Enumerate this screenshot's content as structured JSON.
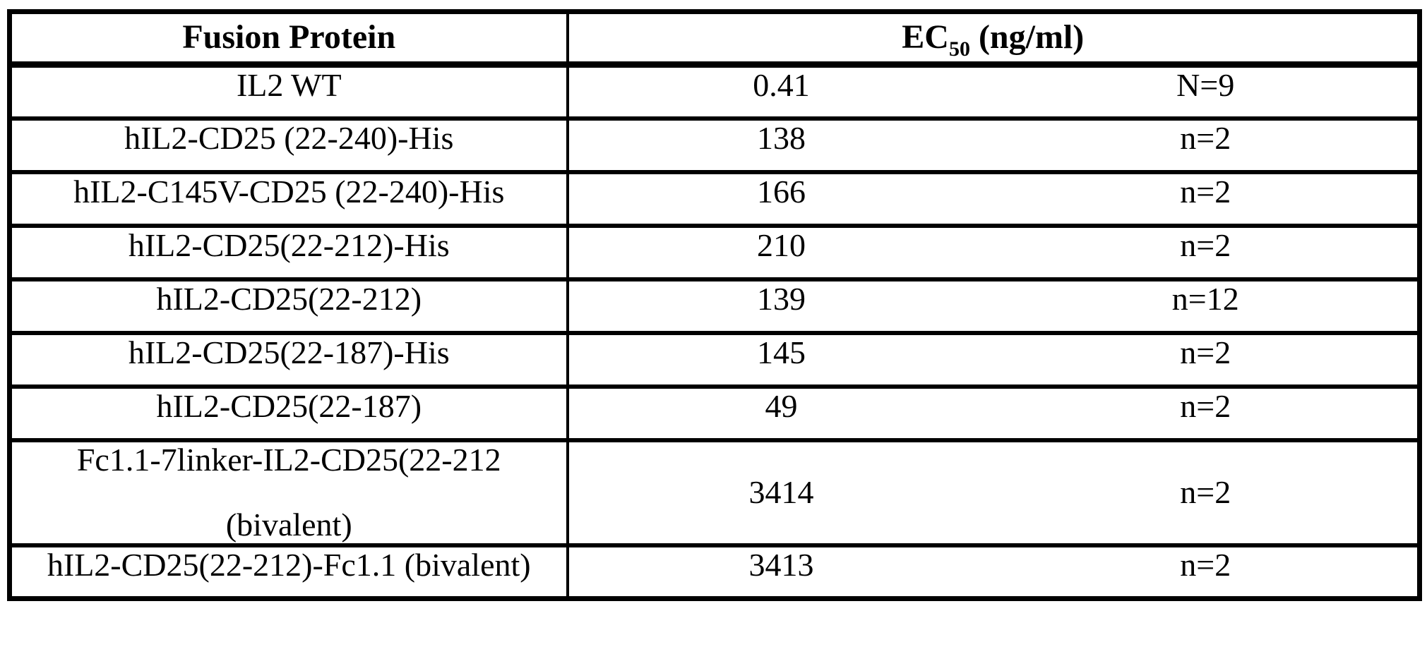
{
  "table": {
    "header": {
      "protein": "Fusion Protein",
      "ec50_prefix": "EC",
      "ec50_sub": "50",
      "ec50_unit": " (ng/ml)"
    },
    "rows": [
      {
        "protein_lines": [
          "IL2 WT"
        ],
        "ec50": "0.41",
        "n": "N=9"
      },
      {
        "protein_lines": [
          "hIL2-CD25 (22-240)-His"
        ],
        "ec50": "138",
        "n": "n=2"
      },
      {
        "protein_lines": [
          "hIL2-C145V-CD25 (22-240)-His"
        ],
        "ec50": "166",
        "n": "n=2"
      },
      {
        "protein_lines": [
          "hIL2-CD25(22-212)-His"
        ],
        "ec50": "210",
        "n": "n=2"
      },
      {
        "protein_lines": [
          "hIL2-CD25(22-212)"
        ],
        "ec50": "139",
        "n": "n=12"
      },
      {
        "protein_lines": [
          "hIL2-CD25(22-187)-His"
        ],
        "ec50": "145",
        "n": "n=2"
      },
      {
        "protein_lines": [
          "hIL2-CD25(22-187)"
        ],
        "ec50": "49",
        "n": "n=2"
      },
      {
        "protein_lines": [
          "Fc1.1-7linker-IL2-CD25(22-212",
          "(bivalent)"
        ],
        "ec50": "3414",
        "n": "n=2"
      },
      {
        "protein_lines": [
          "hIL2-CD25(22-212)-Fc1.1 (bivalent)"
        ],
        "ec50": "3413",
        "n": "n=2"
      }
    ],
    "colors": {
      "border": "#000000",
      "background": "#ffffff",
      "text": "#000000"
    }
  }
}
